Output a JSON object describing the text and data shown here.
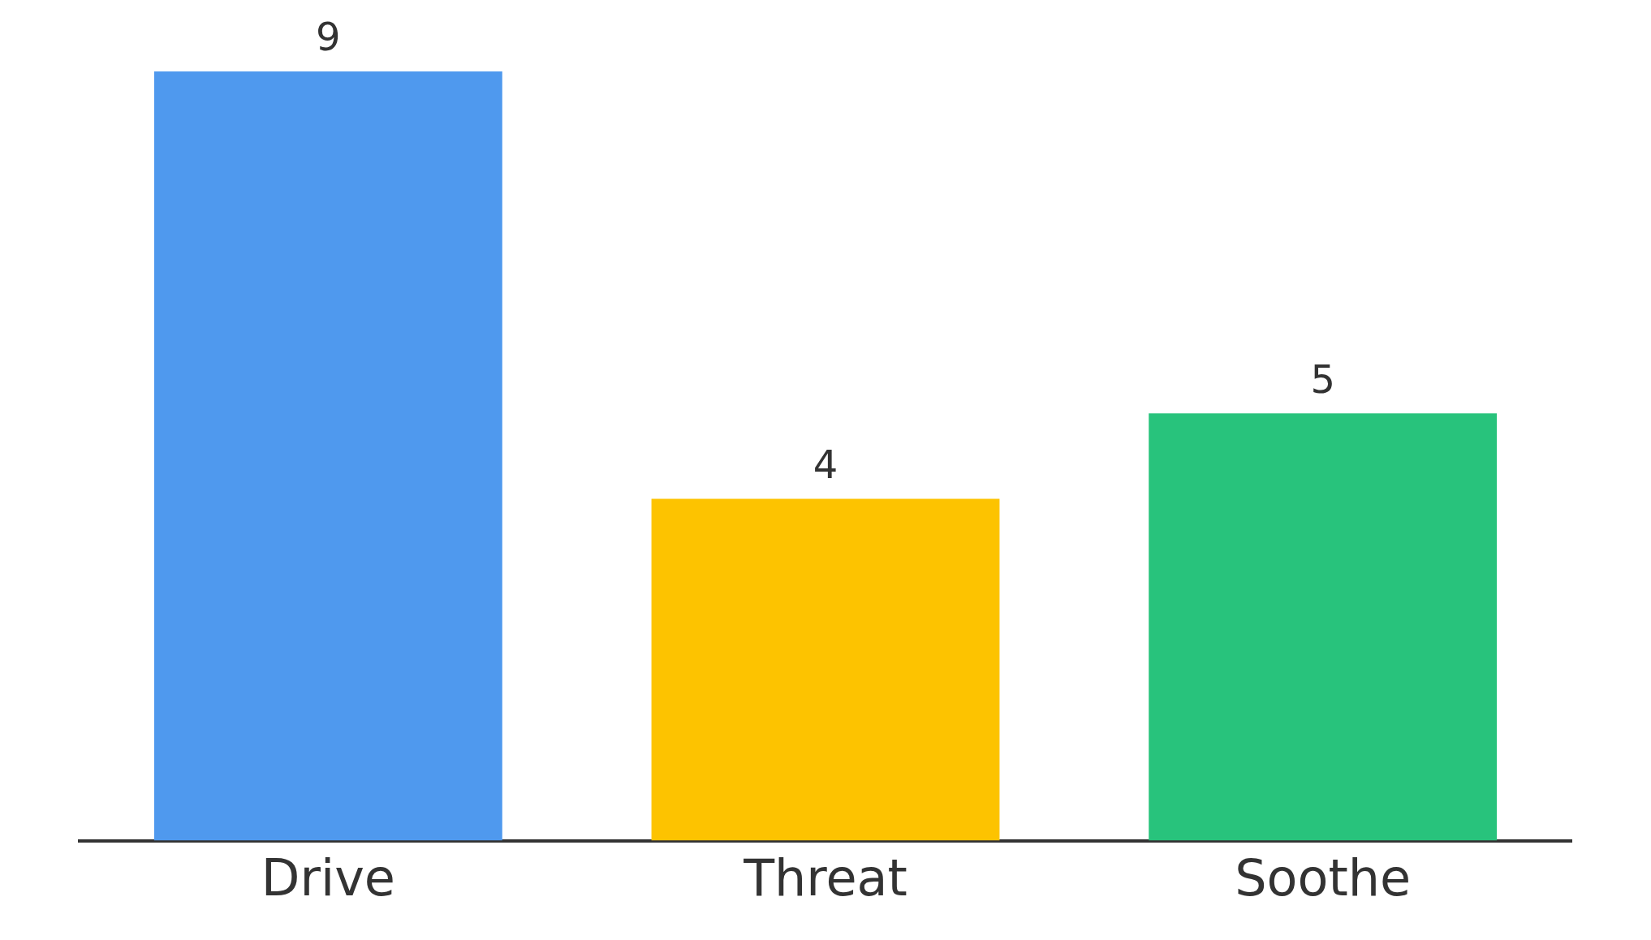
{
  "chart_data": {
    "type": "bar",
    "categories": [
      "Drive",
      "Threat",
      "Soothe"
    ],
    "values": [
      9,
      4,
      5
    ],
    "colors": [
      "#4f99ee",
      "#fdc300",
      "#28c37c"
    ],
    "data_labels": true,
    "grid": false,
    "legend": false
  }
}
